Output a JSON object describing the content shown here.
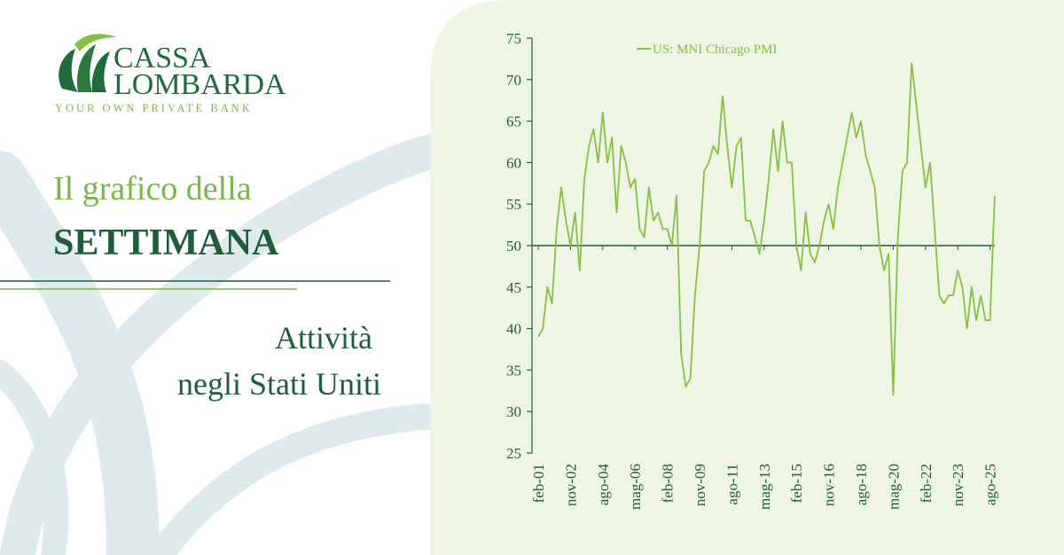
{
  "brand": {
    "name_line1": "CASSA",
    "name_line2": "LOMBARDA",
    "tagline": "YOUR OWN PRIVATE BANK"
  },
  "header": {
    "title_line1": "Il grafico della",
    "title_line2": "SETTIMANA",
    "subtitle_line1": "Attività",
    "subtitle_line2": "negli Stati Uniti"
  },
  "chart_data": {
    "type": "line",
    "categories": [
      "feb-01",
      null,
      null,
      null,
      null,
      null,
      null,
      "nov-02",
      null,
      null,
      null,
      null,
      null,
      null,
      "ago-04",
      null,
      null,
      null,
      null,
      null,
      null,
      "mag-06",
      null,
      null,
      null,
      null,
      null,
      null,
      "feb-08",
      null,
      null,
      null,
      null,
      null,
      null,
      "nov-09",
      null,
      null,
      null,
      null,
      null,
      null,
      "ago-11",
      null,
      null,
      null,
      null,
      null,
      null,
      "mag-13",
      null,
      null,
      null,
      null,
      null,
      null,
      "feb-15",
      null,
      null,
      null,
      null,
      null,
      null,
      "nov-16",
      null,
      null,
      null,
      null,
      null,
      null,
      "ago-18",
      null,
      null,
      null,
      null,
      null,
      null,
      "mag-20",
      null,
      null,
      null,
      null,
      null,
      null,
      "feb-22",
      null,
      null,
      null,
      null,
      null,
      null,
      "nov-23",
      null,
      null,
      null,
      null,
      null,
      null,
      "ago-25",
      null
    ],
    "series": [
      {
        "name": "US: MNI Chicago PMI",
        "color": "#86c044",
        "values": [
          39,
          40,
          45,
          43,
          52,
          57,
          53,
          50,
          54,
          47,
          58,
          62,
          64,
          60,
          66,
          60,
          63,
          54,
          62,
          60,
          57,
          58,
          52,
          51,
          57,
          53,
          54,
          52,
          52,
          50,
          56,
          37,
          33,
          34,
          44,
          50,
          59,
          60,
          62,
          61,
          68,
          62,
          57,
          62,
          63,
          53,
          53,
          51,
          49,
          53,
          58,
          64,
          59,
          65,
          60,
          60,
          50,
          47,
          54,
          49,
          48,
          50,
          53,
          55,
          52,
          57,
          60,
          63,
          66,
          63,
          65,
          61,
          59,
          57,
          50,
          47,
          49,
          32,
          51,
          59,
          60,
          72,
          67,
          62,
          57,
          60,
          52,
          44,
          43,
          44,
          44,
          47,
          45,
          40,
          45,
          41,
          44,
          41,
          41,
          56
        ]
      }
    ],
    "ylim": [
      25,
      75
    ],
    "yticks": [
      25,
      30,
      35,
      40,
      45,
      50,
      55,
      60,
      65,
      70,
      75
    ],
    "baseline": 50,
    "legend": "top"
  }
}
